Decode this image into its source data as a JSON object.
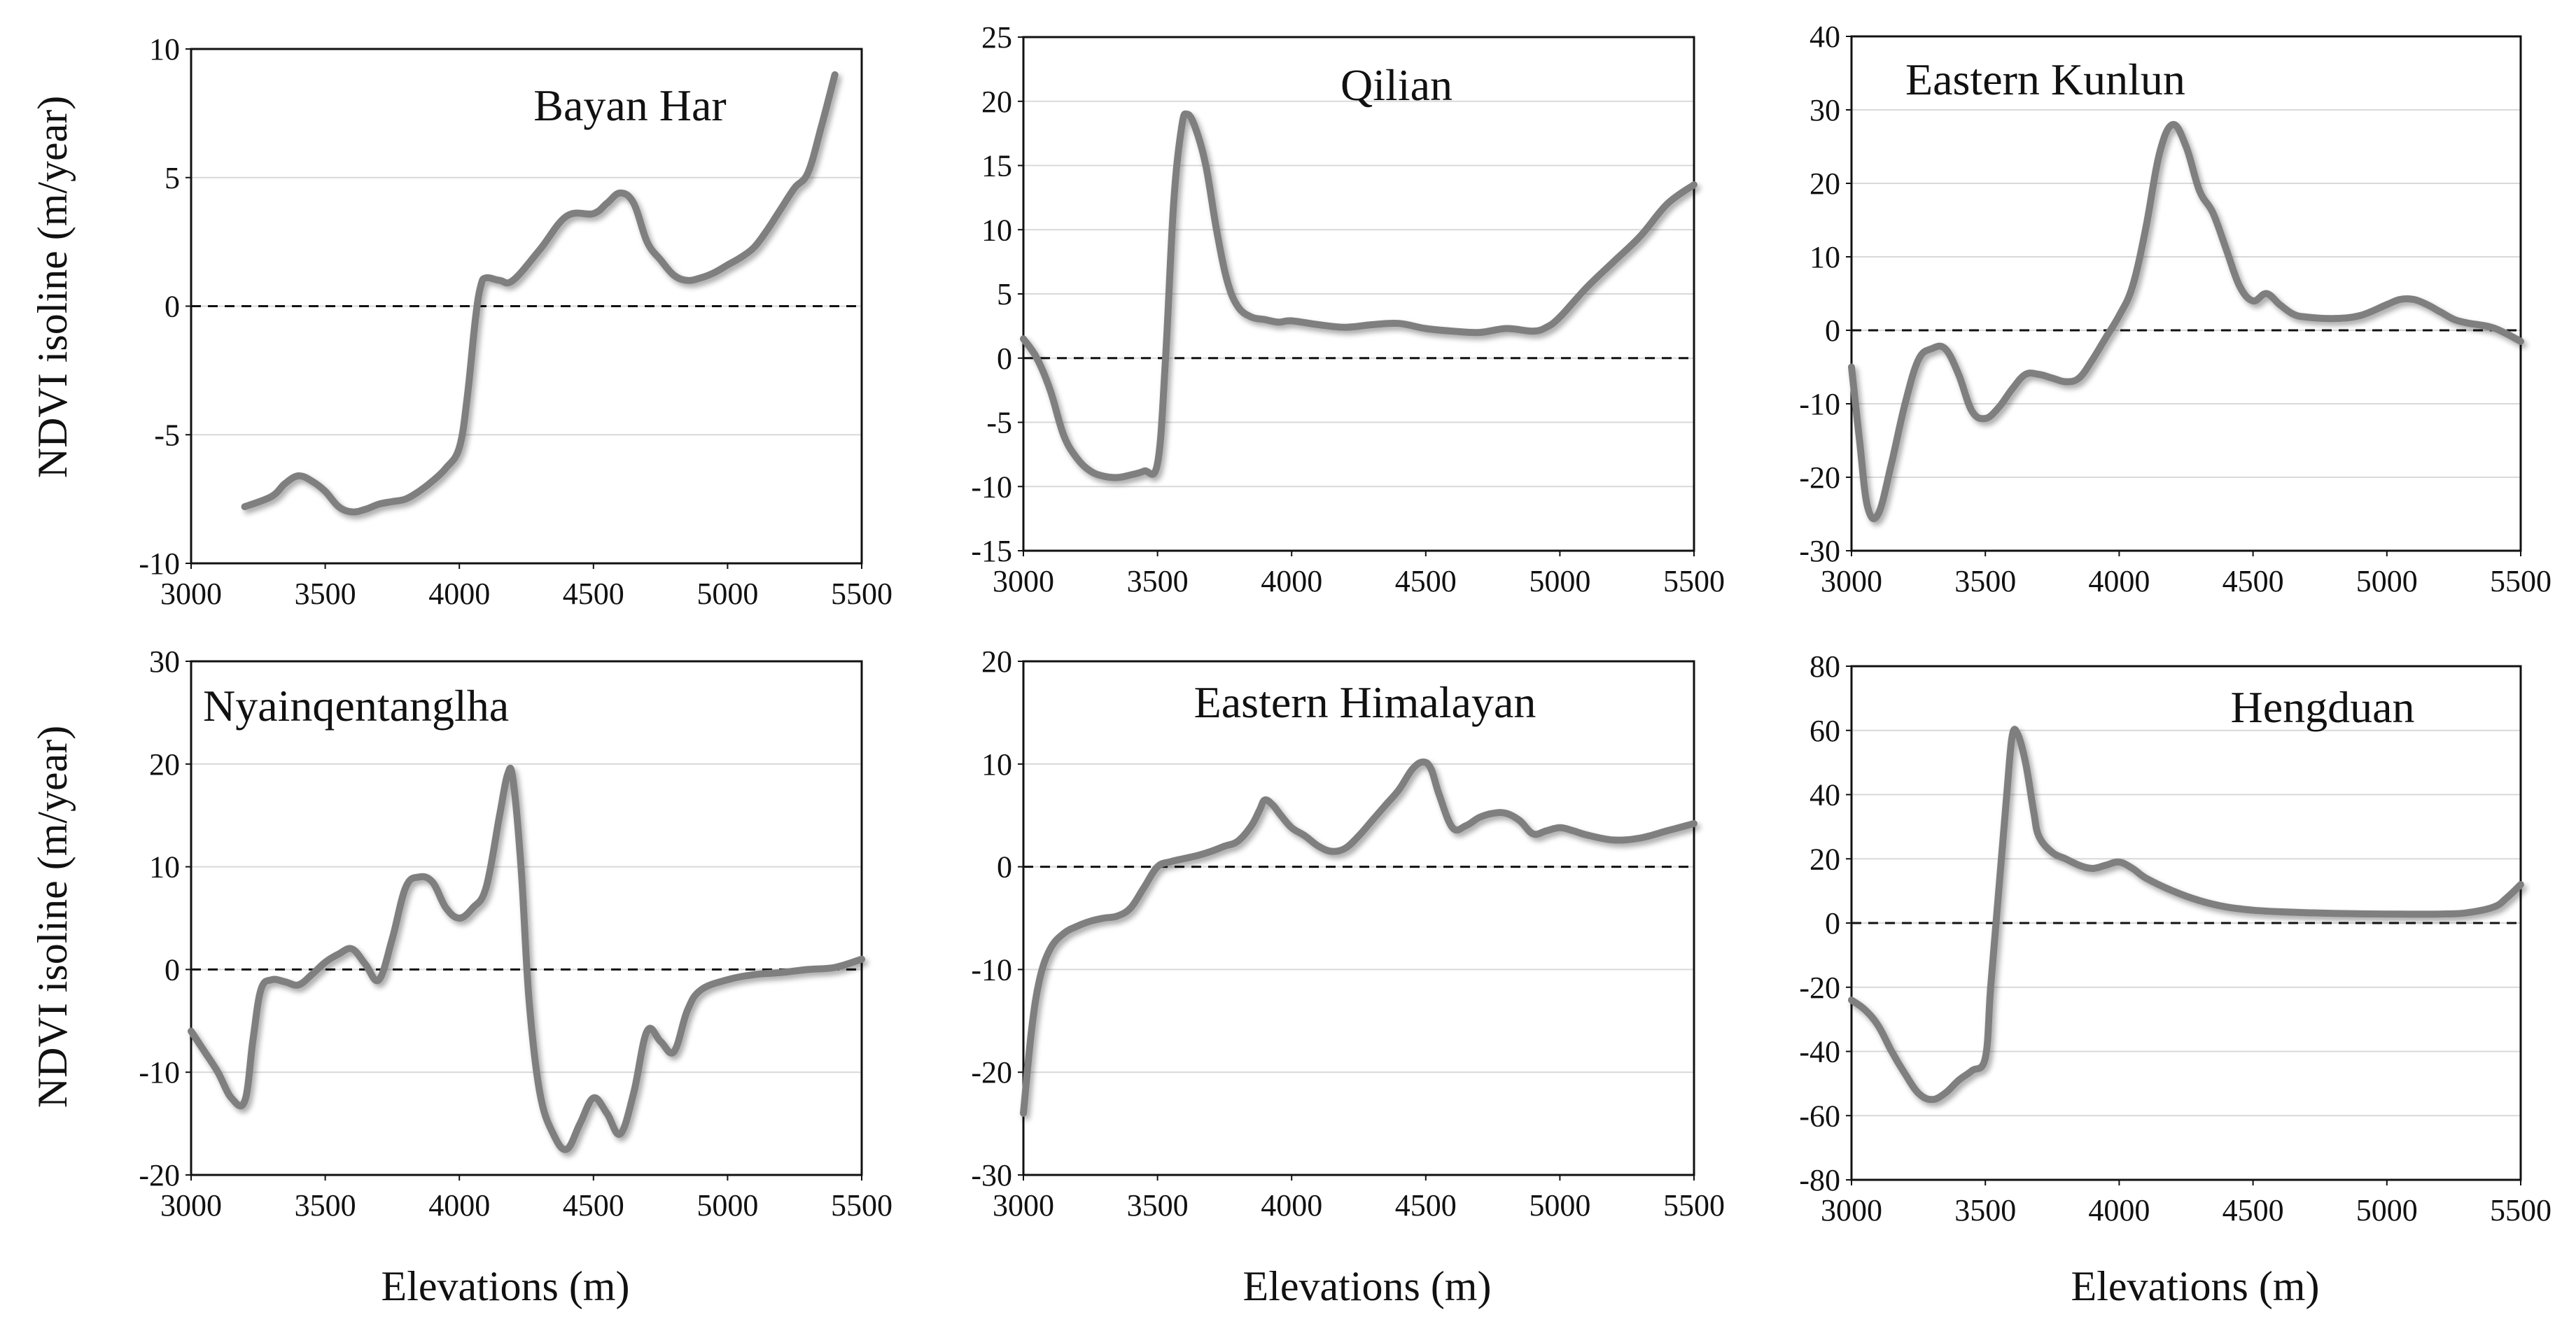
{
  "figure": {
    "ylabel": "NDVI isoline  (m/year)",
    "xlabel": "Elevations  (m)"
  },
  "chart_data": [
    {
      "type": "line",
      "title": "Bayan Har",
      "xlabel": "",
      "ylabel": "NDVI isoline  (m/year)",
      "xlim": [
        3000,
        5500
      ],
      "ylim": [
        -10,
        10
      ],
      "x_ticks": [
        "3000",
        "3500",
        "4000",
        "4500",
        "5000",
        "5500"
      ],
      "y_ticks": [
        "10",
        "5",
        "0",
        "-5",
        "-10"
      ],
      "series": [
        {
          "name": "Bayan Har",
          "color": "#7f7f7f",
          "x": [
            3200,
            3300,
            3350,
            3400,
            3450,
            3500,
            3550,
            3600,
            3650,
            3700,
            3750,
            3800,
            3850,
            3900,
            3950,
            4000,
            4030,
            4060,
            4080,
            4100,
            4150,
            4200,
            4300,
            4400,
            4500,
            4550,
            4600,
            4650,
            4700,
            4750,
            4800,
            4850,
            4900,
            4950,
            5000,
            5050,
            5100,
            5150,
            5200,
            5250,
            5300,
            5350,
            5400
          ],
          "values": [
            -7.8,
            -7.4,
            -6.9,
            -6.6,
            -6.8,
            -7.2,
            -7.8,
            -8.0,
            -7.9,
            -7.7,
            -7.6,
            -7.5,
            -7.2,
            -6.8,
            -6.3,
            -5.5,
            -3.5,
            -0.5,
            0.8,
            1.1,
            1.0,
            1.0,
            2.2,
            3.5,
            3.6,
            4.0,
            4.4,
            4.0,
            2.5,
            1.8,
            1.2,
            1.0,
            1.1,
            1.3,
            1.6,
            1.9,
            2.3,
            3.0,
            3.8,
            4.6,
            5.2,
            7.0,
            9.0
          ]
        }
      ],
      "zero_line": true
    },
    {
      "type": "line",
      "title": "Qilian",
      "xlabel": "",
      "ylabel": "",
      "xlim": [
        3000,
        5500
      ],
      "ylim": [
        -15,
        25
      ],
      "x_ticks": [
        "3000",
        "3500",
        "4000",
        "4500",
        "5000",
        "5500"
      ],
      "y_ticks": [
        "25",
        "20",
        "15",
        "10",
        "5",
        "0",
        "-5",
        "-10",
        "-15"
      ],
      "series": [
        {
          "name": "Qilian",
          "color": "#7f7f7f",
          "x": [
            3000,
            3050,
            3100,
            3150,
            3200,
            3250,
            3300,
            3350,
            3400,
            3450,
            3500,
            3530,
            3560,
            3590,
            3610,
            3640,
            3680,
            3720,
            3760,
            3800,
            3850,
            3900,
            3950,
            4000,
            4100,
            4200,
            4300,
            4400,
            4500,
            4600,
            4700,
            4800,
            4900,
            4950,
            5000,
            5100,
            5200,
            5300,
            5400,
            5500
          ],
          "values": [
            1.5,
            0,
            -2.5,
            -6,
            -7.8,
            -8.8,
            -9.2,
            -9.3,
            -9.1,
            -8.8,
            -8.2,
            0,
            12,
            18,
            19,
            18,
            15,
            10,
            6,
            4,
            3.2,
            3.0,
            2.8,
            2.9,
            2.6,
            2.4,
            2.6,
            2.7,
            2.3,
            2.1,
            2.0,
            2.3,
            2.1,
            2.4,
            3.2,
            5.5,
            7.5,
            9.5,
            12,
            13.5
          ]
        }
      ],
      "zero_line": true
    },
    {
      "type": "line",
      "title": "Eastern  Kunlun",
      "xlabel": "",
      "ylabel": "",
      "xlim": [
        3000,
        5500
      ],
      "ylim": [
        -30,
        40
      ],
      "x_ticks": [
        "3000",
        "3500",
        "4000",
        "4500",
        "5000",
        "5500"
      ],
      "y_ticks": [
        "40",
        "30",
        "20",
        "10",
        "0",
        "-10",
        "-20",
        "-30"
      ],
      "series": [
        {
          "name": "Eastern Kunlun",
          "color": "#7f7f7f",
          "x": [
            3000,
            3030,
            3060,
            3100,
            3150,
            3200,
            3250,
            3300,
            3350,
            3400,
            3450,
            3500,
            3550,
            3600,
            3650,
            3700,
            3750,
            3800,
            3850,
            3900,
            3950,
            4000,
            4050,
            4100,
            4150,
            4200,
            4250,
            4300,
            4350,
            4400,
            4450,
            4500,
            4550,
            4600,
            4650,
            4700,
            4800,
            4900,
            5000,
            5050,
            5100,
            5150,
            5200,
            5250,
            5300,
            5400,
            5500
          ],
          "values": [
            -5,
            -15,
            -24,
            -25,
            -18,
            -10,
            -4,
            -2.5,
            -2.5,
            -6,
            -11,
            -12,
            -10.5,
            -8,
            -6,
            -6,
            -6.5,
            -7,
            -6.5,
            -4,
            -1,
            2,
            6,
            14,
            24,
            28,
            25,
            19,
            16,
            11,
            6,
            4,
            5,
            3.5,
            2.2,
            1.8,
            1.6,
            2,
            3.5,
            4.2,
            4.2,
            3.5,
            2.5,
            1.5,
            1.0,
            0.3,
            -1.5
          ]
        }
      ],
      "zero_line": true
    },
    {
      "type": "line",
      "title": "Nyainqentanglha",
      "xlabel": "Elevations  (m)",
      "ylabel": "NDVI isoline  (m/year)",
      "xlim": [
        3000,
        5500
      ],
      "ylim": [
        -20,
        30
      ],
      "x_ticks": [
        "3000",
        "3500",
        "4000",
        "4500",
        "5000",
        "5500"
      ],
      "y_ticks": [
        "30",
        "20",
        "10",
        "0",
        "-10",
        "-20"
      ],
      "series": [
        {
          "name": "Nyainqentanglha",
          "color": "#7f7f7f",
          "x": [
            3000,
            3050,
            3100,
            3150,
            3200,
            3230,
            3260,
            3300,
            3350,
            3400,
            3450,
            3500,
            3550,
            3600,
            3650,
            3700,
            3750,
            3800,
            3850,
            3900,
            3950,
            4000,
            4050,
            4100,
            4150,
            4180,
            4200,
            4230,
            4260,
            4300,
            4350,
            4400,
            4450,
            4500,
            4550,
            4600,
            4650,
            4700,
            4750,
            4800,
            4850,
            4900,
            5000,
            5100,
            5200,
            5300,
            5400,
            5500
          ],
          "values": [
            -6,
            -8,
            -10,
            -12.5,
            -12.8,
            -7,
            -2,
            -1,
            -1.2,
            -1.5,
            -0.5,
            0.7,
            1.5,
            2,
            0.5,
            -1,
            3,
            8,
            9,
            8.5,
            6,
            5,
            6,
            8,
            15,
            19,
            18.5,
            10,
            -3,
            -12,
            -16,
            -17.5,
            -15,
            -12.5,
            -14,
            -16,
            -12,
            -6,
            -7,
            -8,
            -4,
            -2,
            -1,
            -0.5,
            -0.3,
            0,
            0.2,
            1
          ]
        }
      ],
      "zero_line": true
    },
    {
      "type": "line",
      "title": "Eastern  Himalayan",
      "xlabel": "Elevations  (m)",
      "ylabel": "",
      "xlim": [
        3000,
        5500
      ],
      "ylim": [
        -30,
        20
      ],
      "x_ticks": [
        "3000",
        "3500",
        "4000",
        "4500",
        "5000",
        "5500"
      ],
      "y_ticks": [
        "20",
        "10",
        "0",
        "-10",
        "-20",
        "-30"
      ],
      "series": [
        {
          "name": "Eastern Himalayan",
          "color": "#7f7f7f",
          "x": [
            3000,
            3030,
            3060,
            3100,
            3150,
            3200,
            3250,
            3300,
            3350,
            3400,
            3450,
            3500,
            3550,
            3600,
            3650,
            3700,
            3750,
            3800,
            3850,
            3880,
            3900,
            3930,
            3960,
            4000,
            4050,
            4100,
            4150,
            4200,
            4250,
            4300,
            4350,
            4400,
            4450,
            4490,
            4520,
            4550,
            4600,
            4650,
            4700,
            4750,
            4800,
            4850,
            4900,
            4950,
            5000,
            5050,
            5100,
            5200,
            5300,
            5400,
            5500
          ],
          "values": [
            -24,
            -16,
            -11,
            -8,
            -6.5,
            -5.8,
            -5.3,
            -5,
            -4.8,
            -4,
            -2,
            0,
            0.5,
            0.8,
            1.1,
            1.5,
            2,
            2.5,
            4,
            5.5,
            6.5,
            6,
            5,
            3.8,
            3,
            2,
            1.5,
            1.8,
            3,
            4.5,
            6,
            7.5,
            9.5,
            10.2,
            9.5,
            7,
            3.8,
            4,
            4.8,
            5.2,
            5.2,
            4.5,
            3.2,
            3.5,
            3.8,
            3.5,
            3.1,
            2.6,
            2.8,
            3.5,
            4.2
          ]
        }
      ],
      "zero_line": true
    },
    {
      "type": "line",
      "title": "Hengduan",
      "xlabel": "Elevations  (m)",
      "ylabel": "",
      "xlim": [
        3000,
        5500
      ],
      "ylim": [
        -80,
        80
      ],
      "x_ticks": [
        "3000",
        "3500",
        "4000",
        "4500",
        "5000",
        "5500"
      ],
      "y_ticks": [
        "80",
        "60",
        "40",
        "20",
        "0",
        "-20",
        "-40",
        "-60",
        "-80"
      ],
      "series": [
        {
          "name": "Hengduan",
          "color": "#7f7f7f",
          "x": [
            3000,
            3050,
            3100,
            3150,
            3200,
            3250,
            3300,
            3350,
            3400,
            3450,
            3500,
            3520,
            3550,
            3580,
            3600,
            3620,
            3650,
            3680,
            3700,
            3750,
            3800,
            3850,
            3900,
            3950,
            4000,
            4050,
            4100,
            4200,
            4300,
            4400,
            4500,
            4600,
            4800,
            5000,
            5200,
            5300,
            5400,
            5450,
            5500
          ],
          "values": [
            -24,
            -27,
            -32,
            -40,
            -47,
            -53,
            -55,
            -53,
            -49,
            -46,
            -42,
            -20,
            10,
            40,
            58,
            59,
            50,
            35,
            27,
            22,
            20,
            18,
            17,
            18,
            19,
            17,
            14,
            10,
            7,
            5,
            4,
            3.5,
            3,
            2.8,
            2.8,
            3.2,
            5,
            8,
            12
          ]
        }
      ],
      "zero_line": true
    }
  ]
}
